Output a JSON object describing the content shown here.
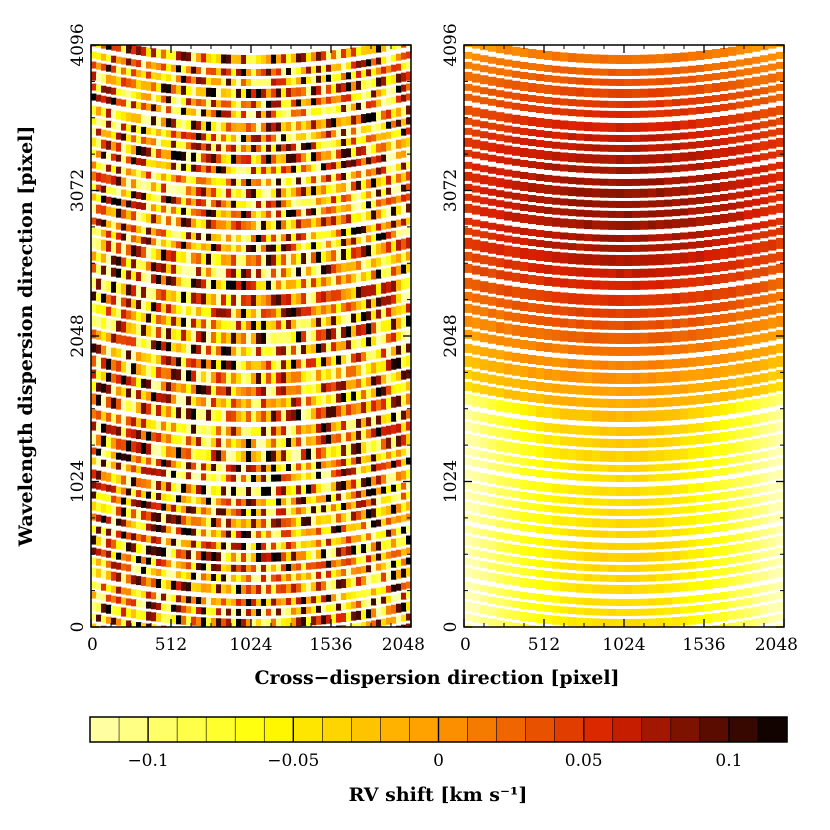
{
  "chart_data": [
    {
      "type": "heatmap",
      "panel": "left",
      "x": {
        "ticks": [
          0,
          512,
          1024,
          1536,
          2048
        ],
        "tick_labels": [
          "0",
          "512",
          "1024",
          "1536",
          "2048"
        ],
        "range": [
          0,
          2048
        ]
      },
      "y": {
        "ticks": [
          0,
          1024,
          2048,
          3072,
          4096
        ],
        "tick_labels": [
          "0",
          "1024",
          "2048",
          "3072",
          "4096"
        ],
        "range": [
          0,
          4096
        ]
      },
      "pattern": "pixel-to-pixel noise",
      "value_range": [
        -0.12,
        0.12
      ]
    },
    {
      "type": "heatmap",
      "panel": "right",
      "x": {
        "ticks": [
          0,
          512,
          1024,
          1536,
          2048
        ],
        "tick_labels": [
          "0",
          "512",
          "1024",
          "1536",
          "2048"
        ],
        "range": [
          0,
          2048
        ]
      },
      "y": {
        "ticks": [
          0,
          1024,
          2048,
          3072,
          4096
        ],
        "tick_labels": [
          "0",
          "1024",
          "2048",
          "3072",
          "4096"
        ],
        "range": [
          0,
          4096
        ]
      },
      "pattern": "smooth, curved echelle orders",
      "value_range": [
        -0.12,
        0.12
      ]
    }
  ],
  "axes": {
    "xlabel": "Cross−dispersion direction [pixel]",
    "ylabel": "Wavelength dispersion direction [pixel]"
  },
  "colorbar": {
    "label": "RV shift [km s⁻¹]",
    "range": [
      -0.12,
      0.12
    ],
    "ticks": [
      -0.1,
      -0.05,
      0,
      0.05,
      0.1
    ],
    "tick_labels": [
      "−0.1",
      "−0.05",
      "0",
      "0.05",
      "0.1"
    ],
    "colors": [
      "#ffffb0",
      "#ffff00",
      "#ff9900",
      "#d81e00",
      "#000000"
    ]
  }
}
